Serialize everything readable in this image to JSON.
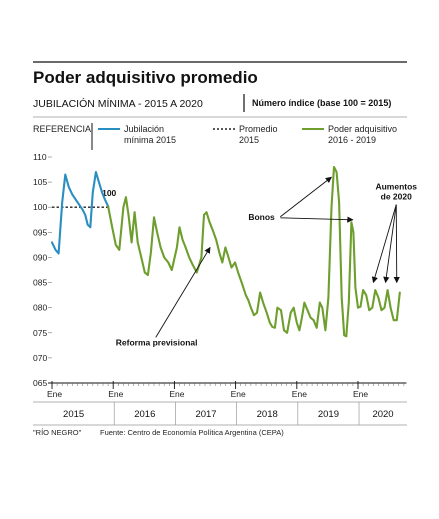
{
  "header": {
    "title": "Poder adquisitivo promedio",
    "subtitle": "JUBILACIÓN MÍNIMA - 2015 A 2020",
    "note": "Número índice (base 100 = 2015)"
  },
  "legend": {
    "heading": "REFERENCIA",
    "items": [
      {
        "line1": "Jubilación",
        "line2": "mínima 2015",
        "color": "#2a8fc0",
        "style": "solid"
      },
      {
        "line1": "Promedio",
        "line2": "2015",
        "color": "#222222",
        "style": "dotted"
      },
      {
        "line1": "Poder  adquisitivo",
        "line2": "2016 - 2019",
        "color": "#6e9e2e",
        "style": "solid"
      }
    ]
  },
  "chart_data": {
    "type": "line",
    "ylim": [
      65,
      110
    ],
    "yticks": [
      "110",
      "105",
      "100",
      "095",
      "090",
      "085",
      "080",
      "075",
      "070",
      "065"
    ],
    "yticks_values": [
      110,
      105,
      100,
      95,
      90,
      85,
      80,
      75,
      70,
      65
    ],
    "month_ticks": {
      "label": "Ene",
      "year_start_index": [
        0,
        12,
        24,
        36,
        48,
        60
      ]
    },
    "years": [
      "2015",
      "2016",
      "2017",
      "2018",
      "2019",
      "2020"
    ],
    "x_unit": "months since Jan 2015",
    "series": [
      {
        "color": "#2a8fc0",
        "points": [
          [
            0,
            93
          ],
          [
            0.7,
            91.5
          ],
          [
            1.3,
            90.8
          ],
          [
            2,
            101
          ],
          [
            2.6,
            106.5
          ],
          [
            3.3,
            104
          ],
          [
            4,
            102.5
          ],
          [
            5,
            101
          ],
          [
            6,
            99.5
          ],
          [
            6.5,
            98.5
          ],
          [
            7,
            96.5
          ],
          [
            7.5,
            96
          ],
          [
            8,
            103
          ],
          [
            8.6,
            107
          ],
          [
            9.2,
            105
          ],
          [
            9.8,
            103
          ],
          [
            10.4,
            101.5
          ],
          [
            11,
            100.2
          ]
        ]
      },
      {
        "color": "#6e9e2e",
        "points": [
          [
            11,
            100.2
          ],
          [
            11.8,
            96
          ],
          [
            12.5,
            92.5
          ],
          [
            13.2,
            91.5
          ],
          [
            14,
            100
          ],
          [
            14.5,
            102
          ],
          [
            15,
            98.5
          ],
          [
            15.6,
            93
          ],
          [
            16.2,
            99
          ],
          [
            16.8,
            93
          ],
          [
            17.5,
            90
          ],
          [
            18.2,
            87
          ],
          [
            18.8,
            86.5
          ],
          [
            19.4,
            91
          ],
          [
            20,
            98
          ],
          [
            20.6,
            95
          ],
          [
            21.3,
            92
          ],
          [
            22,
            90
          ],
          [
            22.8,
            89
          ],
          [
            23.5,
            87.5
          ],
          [
            24.5,
            92
          ],
          [
            25,
            96
          ],
          [
            25.6,
            93.5
          ],
          [
            26.2,
            92
          ],
          [
            26.9,
            90
          ],
          [
            27.6,
            88.5
          ],
          [
            28.4,
            87
          ],
          [
            29.3,
            90
          ],
          [
            29.8,
            98.5
          ],
          [
            30.3,
            99
          ],
          [
            30.9,
            97
          ],
          [
            31.5,
            95.5
          ],
          [
            32.2,
            93.5
          ],
          [
            32.8,
            91
          ],
          [
            33.4,
            89
          ],
          [
            34,
            92
          ],
          [
            34.6,
            90
          ],
          [
            35.2,
            88
          ],
          [
            35.9,
            89
          ],
          [
            36.5,
            87
          ],
          [
            37.2,
            85
          ],
          [
            38,
            82.5
          ],
          [
            38.5,
            81.5
          ],
          [
            39,
            80
          ],
          [
            39.6,
            78.5
          ],
          [
            40.2,
            79
          ],
          [
            40.8,
            83
          ],
          [
            41.4,
            81
          ],
          [
            42.1,
            79
          ],
          [
            42.7,
            77
          ],
          [
            43.2,
            76.2
          ],
          [
            43.7,
            76
          ],
          [
            44.2,
            80
          ],
          [
            44.9,
            79.5
          ],
          [
            45.5,
            75.5
          ],
          [
            46.1,
            75
          ],
          [
            46.8,
            79
          ],
          [
            47.4,
            80
          ],
          [
            48,
            77
          ],
          [
            48.5,
            75.5
          ],
          [
            49,
            78
          ],
          [
            49.5,
            81
          ],
          [
            50.1,
            79.5
          ],
          [
            50.7,
            78
          ],
          [
            51.3,
            77.5
          ],
          [
            51.9,
            76
          ],
          [
            52.5,
            81
          ],
          [
            53,
            80
          ],
          [
            53.6,
            75.5
          ],
          [
            54.2,
            82
          ],
          [
            54.8,
            100
          ],
          [
            55.3,
            108
          ],
          [
            55.8,
            107
          ],
          [
            56.3,
            101
          ],
          [
            56.8,
            82
          ],
          [
            57.3,
            74.5
          ],
          [
            57.7,
            74.3
          ],
          [
            58.2,
            81
          ],
          [
            58.7,
            97
          ],
          [
            59.1,
            95
          ],
          [
            59.5,
            84
          ],
          [
            60,
            80
          ],
          [
            60.5,
            80.2
          ],
          [
            61,
            83.5
          ],
          [
            61.6,
            82.5
          ],
          [
            62.2,
            79.5
          ],
          [
            62.8,
            80
          ],
          [
            63.4,
            83.5
          ],
          [
            64,
            82
          ],
          [
            64.6,
            79.5
          ],
          [
            65.2,
            80
          ],
          [
            65.8,
            83.5
          ],
          [
            66.4,
            80
          ],
          [
            67,
            77.5
          ],
          [
            67.6,
            77.5
          ],
          [
            68.2,
            83
          ]
        ]
      }
    ],
    "reference_line": {
      "y": 100,
      "x_start": 0,
      "x_end": 11,
      "label": "100",
      "label_x": 11
    },
    "annotations": [
      {
        "label": "Reforma previsional",
        "tx": 12.5,
        "ty": 72.5,
        "ax": 31,
        "ay": 92
      },
      {
        "label": "Bonos",
        "tx": 38.5,
        "ty": 97.5,
        "ax": 54.8,
        "ay": 106,
        "ax2": 59,
        "ay2": 97.5
      },
      {
        "label_lines": [
          "Aumentos",
          "de 2020"
        ],
        "tx": 67.5,
        "ty": 103.5,
        "targets": [
          [
            63,
            85
          ],
          [
            65.4,
            85
          ],
          [
            67.6,
            85
          ]
        ]
      }
    ]
  },
  "footer": {
    "source_tag": "\"RÍO NEGRO\"",
    "source": "Fuente: Centro de Economía Política Argentina (CEPA)"
  }
}
